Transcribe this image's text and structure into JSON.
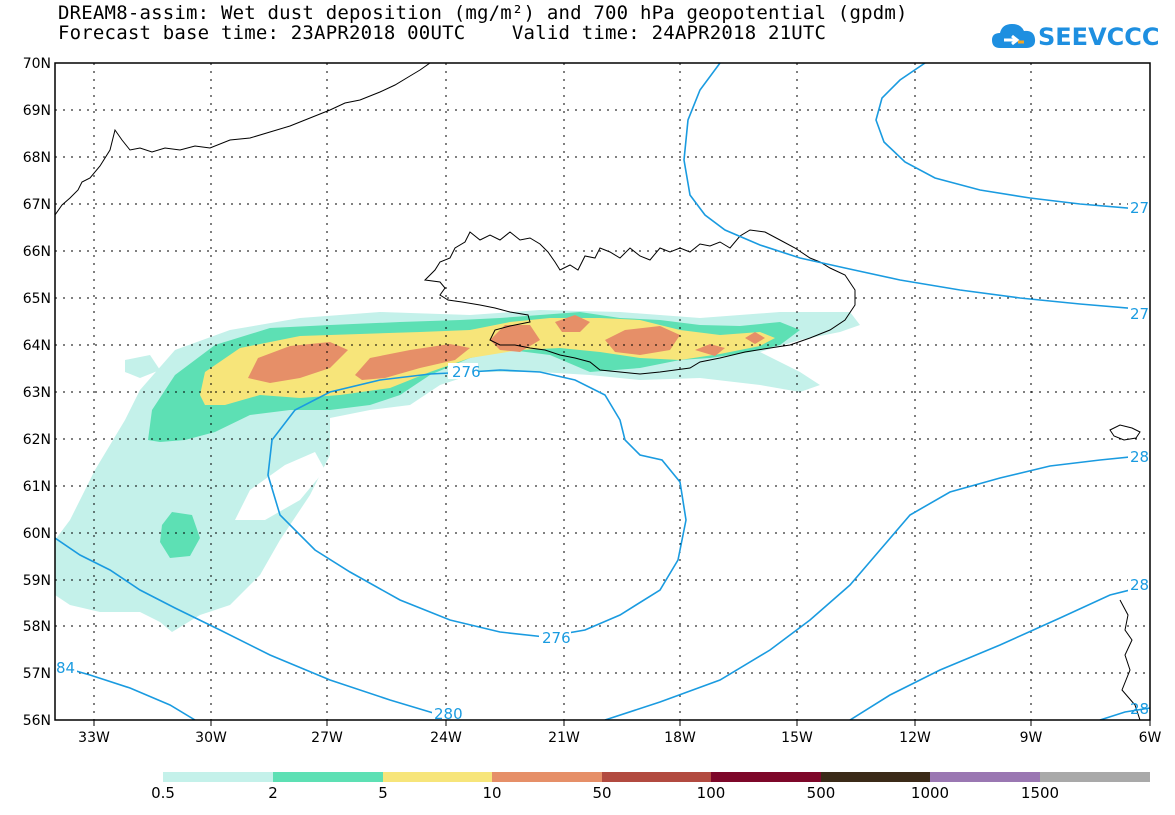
{
  "title": {
    "line1": "DREAM8-assim: Wet dust deposition (mg/m²) and 700 hPa geopotential (gpdm)",
    "line2": "Forecast base time: 23APR2018 00UTC    Valid time: 24APR2018 21UTC"
  },
  "logo": {
    "text": "SEEVCCC",
    "icon": "cloud-icon",
    "color": "#1e8fe0"
  },
  "map": {
    "lon_range": [
      -34.5,
      -6
    ],
    "lat_range": [
      56,
      70
    ],
    "lat_labels": [
      "70N",
      "69N",
      "68N",
      "67N",
      "66N",
      "65N",
      "64N",
      "63N",
      "62N",
      "61N",
      "60N",
      "59N",
      "58N",
      "57N",
      "56N"
    ],
    "lon_labels": [
      "33W",
      "30W",
      "27W",
      "24W",
      "21W",
      "18W",
      "15W",
      "12W",
      "9W",
      "6W"
    ],
    "grid": "dotted",
    "contour_color": "#1a9be0",
    "contour_labels": [
      "276",
      "276",
      "27",
      "27",
      "28",
      "28",
      "84",
      "280",
      "28"
    ]
  },
  "legend": {
    "labels": [
      "0.5",
      "2",
      "5",
      "10",
      "50",
      "100",
      "500",
      "1000",
      "1500"
    ],
    "colors": [
      "#c4f1ea",
      "#5de0b4",
      "#f7e57a",
      "#e68f68",
      "#b24a40",
      "#7d0729",
      "#3b2a18",
      "#9a77b2",
      "#a9a9a9"
    ]
  }
}
